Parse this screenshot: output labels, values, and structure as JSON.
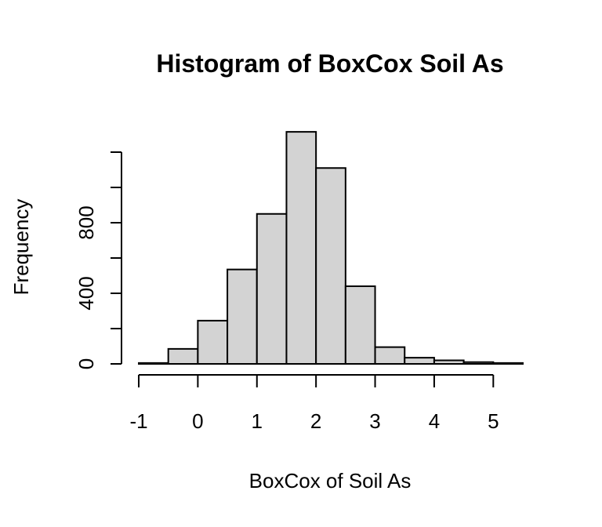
{
  "chart_data": {
    "type": "bar",
    "title": "Histogram of BoxCox Soil As",
    "xlabel": "BoxCox of Soil As",
    "ylabel": "Frequency",
    "bin_edges": [
      -1,
      -0.5,
      0,
      0.5,
      1,
      1.5,
      2,
      2.5,
      3,
      3.5,
      4,
      4.5,
      5,
      5.5
    ],
    "values": [
      5,
      85,
      245,
      535,
      850,
      1315,
      1110,
      440,
      95,
      35,
      20,
      10,
      5
    ],
    "xlim": [
      -1,
      5.5
    ],
    "ylim": [
      0,
      1200
    ],
    "x_ticks": [
      -1,
      0,
      1,
      2,
      3,
      4,
      5
    ],
    "y_ticks": [
      0,
      200,
      400,
      600,
      800,
      1000,
      1200
    ],
    "y_tick_labels": [
      "0",
      "",
      "400",
      "",
      "800",
      "",
      ""
    ],
    "grid": false,
    "fill_color": "#d3d3d3",
    "stroke_color": "#000000"
  }
}
